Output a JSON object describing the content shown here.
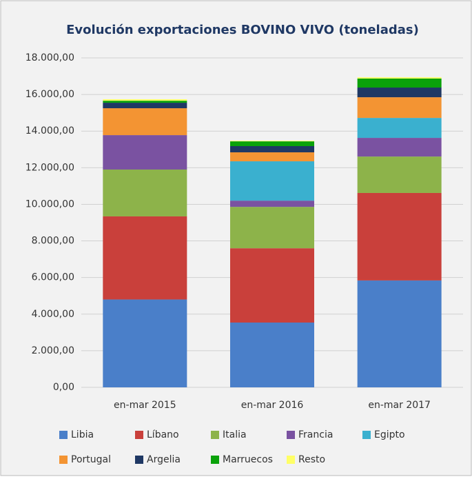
{
  "chart_data": {
    "type": "stacked_bar",
    "title": "Evolución exportaciones BOVINO VIVO (toneladas)",
    "categories": [
      "en-mar 2015",
      "en-mar 2016",
      "en-mar 2017"
    ],
    "series": [
      {
        "name": "Libia",
        "color": "#4a7fc9",
        "values": [
          4800,
          3540,
          5840
        ]
      },
      {
        "name": "Líbano",
        "color": "#c9403b",
        "values": [
          4540,
          4060,
          4780
        ]
      },
      {
        "name": "Italia",
        "color": "#8db34a",
        "values": [
          2560,
          2260,
          1990
        ]
      },
      {
        "name": "Francia",
        "color": "#7a52a1",
        "values": [
          1880,
          340,
          1020
        ]
      },
      {
        "name": "Egipto",
        "color": "#3ab0cf",
        "values": [
          0,
          2150,
          1090
        ]
      },
      {
        "name": "Portugal",
        "color": "#f39433",
        "values": [
          1470,
          490,
          1130
        ]
      },
      {
        "name": "Argelia",
        "color": "#1f3864",
        "values": [
          300,
          340,
          530
        ]
      },
      {
        "name": "Marruecos",
        "color": "#0aa20a",
        "values": [
          110,
          260,
          490
        ]
      },
      {
        "name": "Resto",
        "color": "#ffff66",
        "values": [
          80,
          30,
          70
        ]
      }
    ],
    "ylim": [
      0,
      18000
    ],
    "yticks": [
      {
        "value": 0,
        "label": "0,00"
      },
      {
        "value": 2000,
        "label": "2.000,00"
      },
      {
        "value": 4000,
        "label": "4.000,00"
      },
      {
        "value": 6000,
        "label": "6.000,00"
      },
      {
        "value": 8000,
        "label": "8.000,00"
      },
      {
        "value": 10000,
        "label": "10.000,00"
      },
      {
        "value": 12000,
        "label": "12.000,00"
      },
      {
        "value": 14000,
        "label": "14.000,00"
      },
      {
        "value": 16000,
        "label": "16.000,00"
      },
      {
        "value": 18000,
        "label": "18.000,00"
      }
    ],
    "grid": true,
    "legend": "bottom"
  }
}
